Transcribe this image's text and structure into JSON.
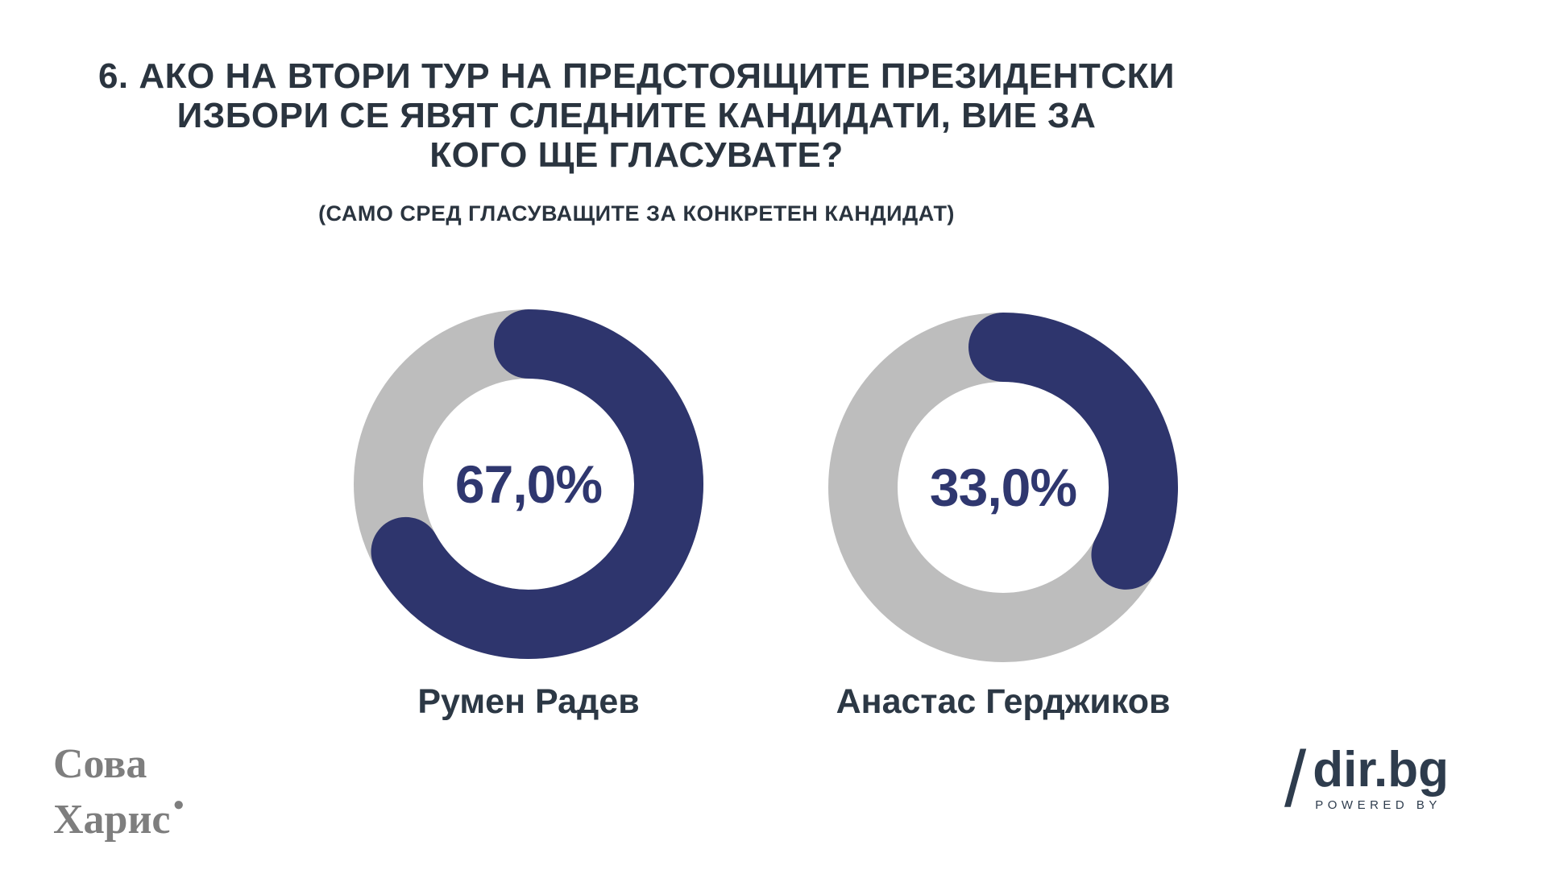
{
  "header": {
    "title_lines": [
      "6. АКО НА ВТОРИ ТУР НА ПРЕДСТОЯЩИТЕ ПРЕЗИДЕНТСКИ",
      "ИЗБОРИ СЕ ЯВЯТ СЛЕДНИТЕ КАНДИДАТИ, ВИЕ ЗА",
      "КОГО ЩЕ ГЛАСУВАТЕ?"
    ],
    "subtitle": "(САМО СРЕД ГЛАСУВАЩИТЕ ЗА КОНКРЕТЕН КАНДИДАТ)"
  },
  "chart_data": {
    "type": "pie",
    "variant": "donut",
    "start_angle_deg": 0,
    "direction": "clockwise",
    "rounded_caps": true,
    "legend_position": "below",
    "series": [
      {
        "name": "Румен Радев",
        "value": 67.0,
        "label": "67,0%"
      },
      {
        "name": "Анастас Герджиков",
        "value": 33.0,
        "label": "33,0%"
      }
    ],
    "colors": {
      "value_arc": "#2e356d",
      "track": "#bdbdbd",
      "label_text": "#2f376f"
    }
  },
  "footer": {
    "pollster_logo": {
      "line1": "Сова",
      "line2": "Харис",
      "mark": "●"
    },
    "brand_logo": {
      "slash": "/",
      "name": "dir.bg",
      "tagline": "POWERED BY"
    }
  }
}
